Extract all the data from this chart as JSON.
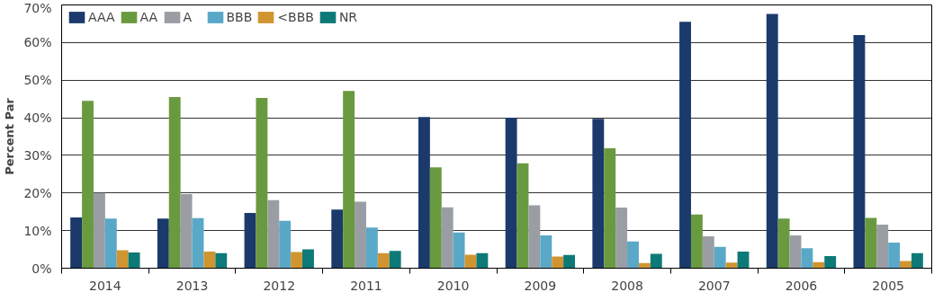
{
  "chart_data": {
    "type": "bar",
    "ylabel": "Percent Par",
    "categories": [
      "2014",
      "2013",
      "2012",
      "2011",
      "2010",
      "2009",
      "2008",
      "2007",
      "2006",
      "2005"
    ],
    "series": [
      {
        "name": "AAA",
        "color": "#1b3a6b",
        "values": [
          13.5,
          13.2,
          14.7,
          15.6,
          40.2,
          40.0,
          39.7,
          65.5,
          67.6,
          62.0
        ]
      },
      {
        "name": "AA",
        "color": "#6a9a3f",
        "values": [
          44.5,
          45.5,
          45.3,
          47.1,
          26.8,
          27.9,
          31.9,
          14.3,
          13.2,
          13.4
        ]
      },
      {
        "name": "A",
        "color": "#9a9ea4",
        "values": [
          20.0,
          19.7,
          18.1,
          17.7,
          16.2,
          16.7,
          16.1,
          8.5,
          8.7,
          11.6
        ]
      },
      {
        "name": "BBB",
        "color": "#5aa8c8",
        "values": [
          13.2,
          13.3,
          12.6,
          10.8,
          9.5,
          8.7,
          7.1,
          5.7,
          5.3,
          6.8
        ]
      },
      {
        "name": "<BBB",
        "color": "#d09530",
        "values": [
          4.8,
          4.4,
          4.3,
          4.0,
          3.6,
          3.1,
          1.4,
          1.5,
          1.6,
          1.9
        ]
      },
      {
        "name": "NR",
        "color": "#0d7a78",
        "values": [
          4.2,
          4.0,
          5.0,
          4.6,
          4.0,
          3.5,
          3.8,
          4.4,
          3.2,
          4.0
        ]
      }
    ],
    "ylim": [
      0,
      70
    ],
    "yticks": [
      {
        "value": 0,
        "label": "0%"
      },
      {
        "value": 10,
        "label": "10%"
      },
      {
        "value": 20,
        "label": "20%"
      },
      {
        "value": 30,
        "label": "30%"
      },
      {
        "value": 40,
        "label": "40%"
      },
      {
        "value": 50,
        "label": "50%"
      },
      {
        "value": 60,
        "label": "60%"
      },
      {
        "value": 70,
        "label": "70%"
      }
    ],
    "grid": "y",
    "legend": "top left"
  }
}
